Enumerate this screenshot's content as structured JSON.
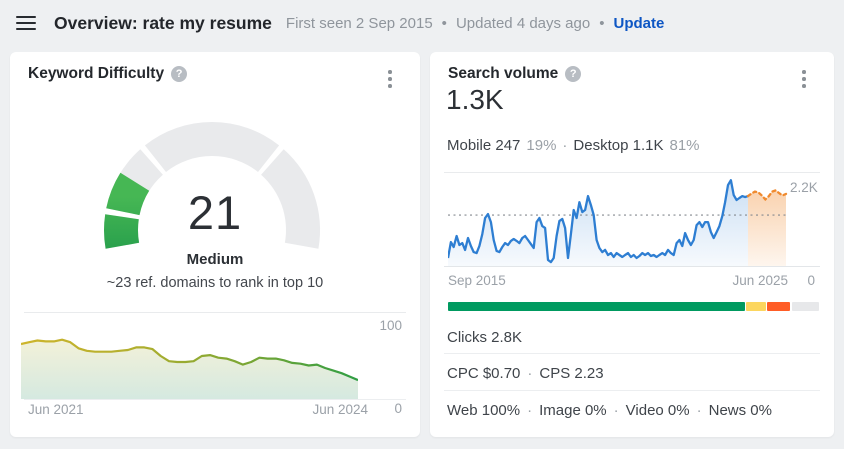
{
  "header": {
    "title": "Overview: rate my resume",
    "first_seen": "First seen 2 Sep 2015",
    "dot1": "•",
    "updated": "Updated 4 days ago",
    "dot2": "•",
    "update_link": "Update"
  },
  "kd_card": {
    "title": "Keyword Difficulty",
    "help_icon": "?",
    "score": "21",
    "level": "Medium",
    "hint": "~23 ref. domains to rank in top 10",
    "history_ymax": "100",
    "history_ymin": "0",
    "history_xstart": "Jun 2021",
    "history_xend": "Jun 2024"
  },
  "volume_card": {
    "title": "Search volume",
    "help_icon": "?",
    "value": "1.3K",
    "mobile_label": "Mobile 247",
    "mobile_pct": "19%",
    "mid_dot": "·",
    "desktop_label": "Desktop 1.1K",
    "desktop_pct": "81%",
    "chart_ymax": "2.2K",
    "chart_ymin": "0",
    "chart_xstart": "Sep 2015",
    "chart_xend": "Jun 2025",
    "clicks": "Clicks 2.8K",
    "cpc": "CPC $0.70",
    "cps": "CPS 2.23",
    "web": "Web 100%",
    "image": "Image 0%",
    "video": "Video 0%",
    "news": "News 0%"
  },
  "chart_data": [
    {
      "id": "kd_gauge",
      "type": "gauge",
      "value": 21,
      "max": 100,
      "segments": [
        [
          0,
          10
        ],
        [
          10,
          30
        ],
        [
          30,
          70
        ],
        [
          70,
          100
        ]
      ],
      "track_color": "#e9eaec",
      "fill_gradient": [
        "#0d8a45",
        "#46b754"
      ],
      "center_label": "21",
      "center_sublabel": "Medium"
    },
    {
      "id": "kd_history",
      "type": "area",
      "title": "Keyword Difficulty history",
      "ylim": [
        0,
        100
      ],
      "x_range": [
        "Jun 2021",
        "Jun 2024"
      ],
      "line_gradient": [
        "#cdb42c",
        "#b2af2e",
        "#7aa634",
        "#2f9e44"
      ],
      "area_gradient": [
        "#f3f1d9",
        "#d5e9e0"
      ],
      "values": [
        64,
        66,
        68,
        67,
        67,
        69,
        66,
        59,
        56,
        55,
        55,
        55,
        56,
        57,
        60,
        60,
        58,
        50,
        44,
        43,
        43,
        44,
        50,
        51,
        48,
        47,
        44,
        40,
        43,
        48,
        47,
        47,
        45,
        42,
        41,
        39,
        40,
        36,
        33,
        30,
        26,
        22
      ]
    },
    {
      "id": "search_volume",
      "type": "area",
      "title": "Search volume history and forecast",
      "ylim": [
        0,
        2400
      ],
      "avg_line": 1300,
      "x_range": [
        "Sep 2015",
        "Jun 2025"
      ],
      "line_color": "#2e7ed2",
      "forecast_color": "#f08a2e",
      "values": [
        205,
        610,
        485,
        765,
        535,
        585,
        410,
        715,
        510,
        355,
        330,
        510,
        815,
        1225,
        1325,
        1120,
        665,
        385,
        355,
        485,
        585,
        535,
        640,
        690,
        640,
        585,
        715,
        765,
        665,
        560,
        460,
        1120,
        1225,
        1020,
        970,
        155,
        100,
        205,
        765,
        1150,
        1200,
        970,
        205,
        815,
        1430,
        1225,
        1630,
        1375,
        1430,
        1785,
        1555,
        1300,
        665,
        460,
        355,
        410,
        280,
        330,
        230,
        330,
        280,
        230,
        280,
        330,
        230,
        280,
        205,
        255,
        330,
        280,
        330,
        255,
        280,
        230,
        280,
        330,
        280,
        410,
        330,
        280,
        585,
        665,
        510,
        840,
        665,
        535,
        665,
        1045,
        1120,
        995,
        1120,
        1120,
        865,
        715,
        865,
        1020,
        1275,
        1630,
        2065,
        2190,
        1810,
        1685,
        1735,
        1785,
        1760,
        1785
      ],
      "forecast_values": [
        1785,
        1850,
        1900,
        1880,
        1800,
        1700,
        1780,
        1900,
        1930,
        1860,
        1800,
        1840
      ]
    }
  ],
  "clicks_bar": {
    "segments": [
      {
        "name": "organic-clicks",
        "pct": 80.9,
        "color": "#009a60"
      },
      {
        "name": "paid-clicks",
        "pct": 5.4,
        "color": "#fcd65f"
      },
      {
        "name": "no-clicks",
        "pct": 6.2,
        "color": "#ff5d26"
      },
      {
        "name": "remainder",
        "pct": 7.5,
        "color": "#e7e8ea"
      }
    ]
  }
}
